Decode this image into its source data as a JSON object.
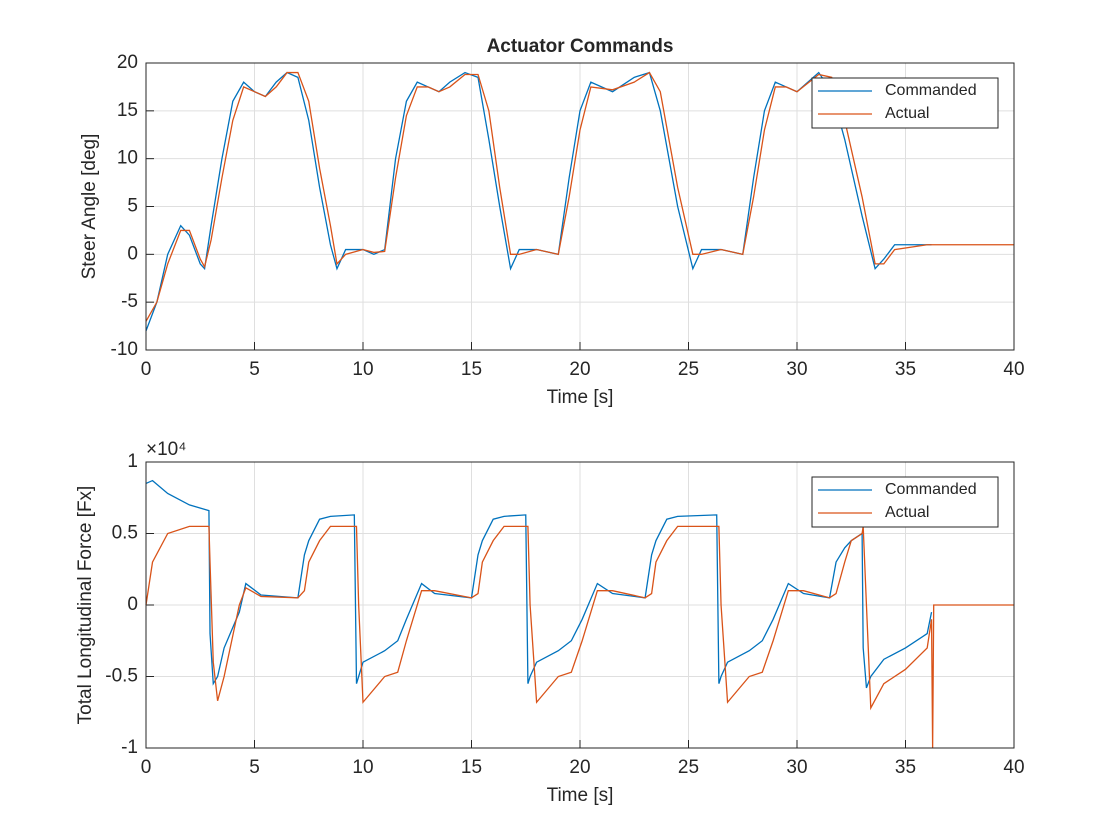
{
  "chart_data": [
    {
      "type": "line",
      "title": "Actuator Commands",
      "xlabel": "Time [s]",
      "ylabel": "Steer Angle [deg]",
      "x": [
        0,
        0.5,
        1,
        1.6,
        2,
        2.5,
        2.7,
        3,
        3.5,
        4,
        4.5,
        5,
        5.5,
        6,
        6.5,
        7,
        7.5,
        8,
        8.5,
        8.8,
        9.2,
        10,
        10.5,
        11,
        11.5,
        12,
        12.5,
        13,
        13.5,
        14,
        14.7,
        15.3,
        15.8,
        16.3,
        16.8,
        17.2,
        18,
        19,
        19.5,
        20,
        20.5,
        21.5,
        22.5,
        23.2,
        23.7,
        24.5,
        25.2,
        25.6,
        26.5,
        27.5,
        28,
        28.5,
        29,
        29.5,
        30,
        31,
        31.6,
        32.2,
        33,
        33.6,
        34,
        34.5,
        36,
        36.2,
        40
      ],
      "series": [
        {
          "name": "Commanded",
          "color": "#0072BD",
          "values": [
            -8,
            -5,
            0,
            3,
            2,
            -1,
            -1.5,
            3,
            10,
            16,
            18,
            17,
            16.5,
            18,
            19,
            18.5,
            14,
            7,
            1,
            -1.5,
            0.5,
            0.5,
            0,
            0.5,
            10,
            16,
            18,
            17.5,
            17,
            18,
            19,
            18.5,
            12,
            5,
            -1.5,
            0.5,
            0.5,
            0,
            8,
            15,
            18,
            17,
            18.5,
            19,
            15,
            5,
            -1.5,
            0.5,
            0.5,
            0,
            8,
            15,
            18,
            17.5,
            17,
            19,
            17,
            12,
            4,
            -1.5,
            -0.5,
            1,
            1,
            1,
            null
          ]
        },
        {
          "name": "Actual",
          "color": "#D95319",
          "values": [
            -7,
            -5,
            -1,
            2.5,
            2.5,
            -0.5,
            -1.3,
            1.5,
            8,
            14,
            17.5,
            17,
            16.5,
            17.5,
            19,
            19,
            16,
            9,
            3,
            -1,
            0,
            0.5,
            0.2,
            0.3,
            8,
            14.5,
            17.5,
            17.5,
            17,
            17.5,
            18.8,
            18.8,
            15,
            7,
            0,
            0,
            0.5,
            0,
            6,
            13,
            17.5,
            17.2,
            18,
            19,
            17,
            7,
            0,
            0,
            0.5,
            0,
            6,
            13,
            17.5,
            17.5,
            17,
            18.8,
            18.5,
            14,
            6,
            -1,
            -1,
            0.5,
            1,
            1,
            1
          ]
        }
      ],
      "xlim": [
        0,
        40
      ],
      "xticks": [
        0,
        5,
        10,
        15,
        20,
        25,
        30,
        35,
        40
      ],
      "ylim": [
        -10,
        20
      ],
      "yticks": [
        -10,
        -5,
        0,
        5,
        10,
        15,
        20
      ],
      "grid": true,
      "legend": "top-right"
    },
    {
      "type": "line",
      "xlabel": "Time [s]",
      "ylabel": "Total Longitudinal Force [Fx]",
      "y_scale_label": "×10⁴",
      "x": [
        0,
        0.3,
        1,
        2,
        2.9,
        2.95,
        3.1,
        3.3,
        3.6,
        4.3,
        4.6,
        5.3,
        7,
        7.3,
        7.5,
        8,
        8.5,
        9.6,
        9.7,
        9.8,
        10,
        11,
        11.6,
        12,
        12.7,
        13.3,
        15,
        15.3,
        15.5,
        16,
        16.5,
        17.5,
        17.6,
        17.7,
        18,
        19,
        19.6,
        20.1,
        20.8,
        21.5,
        23,
        23.3,
        23.5,
        24,
        24.5,
        26.3,
        26.4,
        26.5,
        26.8,
        27.8,
        28.4,
        28.9,
        29.6,
        30.3,
        31.5,
        31.8,
        32.2,
        32.5,
        33,
        33.05,
        33.2,
        33.4,
        34,
        35,
        36,
        36.2,
        36.25,
        36.3,
        40
      ],
      "series": [
        {
          "name": "Commanded",
          "color": "#0072BD",
          "values": [
            0.85,
            0.87,
            0.78,
            0.7,
            0.66,
            -0.2,
            -0.55,
            -0.5,
            -0.3,
            -0.05,
            0.15,
            0.07,
            0.05,
            0.35,
            0.45,
            0.6,
            0.62,
            0.63,
            -0.55,
            -0.5,
            -0.4,
            -0.32,
            -0.25,
            -0.1,
            0.15,
            0.08,
            0.05,
            0.35,
            0.45,
            0.6,
            0.62,
            0.63,
            -0.55,
            -0.5,
            -0.4,
            -0.32,
            -0.25,
            -0.1,
            0.15,
            0.08,
            0.05,
            0.35,
            0.45,
            0.6,
            0.62,
            0.63,
            -0.55,
            -0.5,
            -0.4,
            -0.32,
            -0.25,
            -0.1,
            0.15,
            0.08,
            0.05,
            0.3,
            0.4,
            0.45,
            0.5,
            -0.3,
            -0.58,
            -0.5,
            -0.38,
            -0.3,
            -0.2,
            -0.05,
            null,
            null,
            null
          ]
        },
        {
          "name": "Actual",
          "color": "#D95319",
          "values": [
            0,
            0.3,
            0.5,
            0.55,
            0.55,
            0.3,
            -0.4,
            -0.67,
            -0.5,
            0,
            0.12,
            0.06,
            0.05,
            0.1,
            0.3,
            0.45,
            0.55,
            0.55,
            0.55,
            0,
            -0.68,
            -0.5,
            -0.47,
            -0.25,
            0.1,
            0.1,
            0.05,
            0.08,
            0.3,
            0.45,
            0.55,
            0.55,
            0.55,
            0,
            -0.68,
            -0.5,
            -0.47,
            -0.25,
            0.1,
            0.1,
            0.05,
            0.08,
            0.3,
            0.45,
            0.55,
            0.55,
            0.55,
            0,
            -0.68,
            -0.5,
            -0.47,
            -0.25,
            0.1,
            0.1,
            0.05,
            0.08,
            0.3,
            0.45,
            0.5,
            0.55,
            0,
            -0.72,
            -0.55,
            -0.45,
            -0.3,
            -0.1,
            -1,
            0,
            0
          ]
        }
      ],
      "xlim": [
        0,
        40
      ],
      "xticks": [
        0,
        5,
        10,
        15,
        20,
        25,
        30,
        35,
        40
      ],
      "ylim": [
        -1,
        1
      ],
      "yticks": [
        -1,
        -0.5,
        0,
        0.5,
        1
      ],
      "grid": true,
      "legend": "top-right"
    }
  ]
}
